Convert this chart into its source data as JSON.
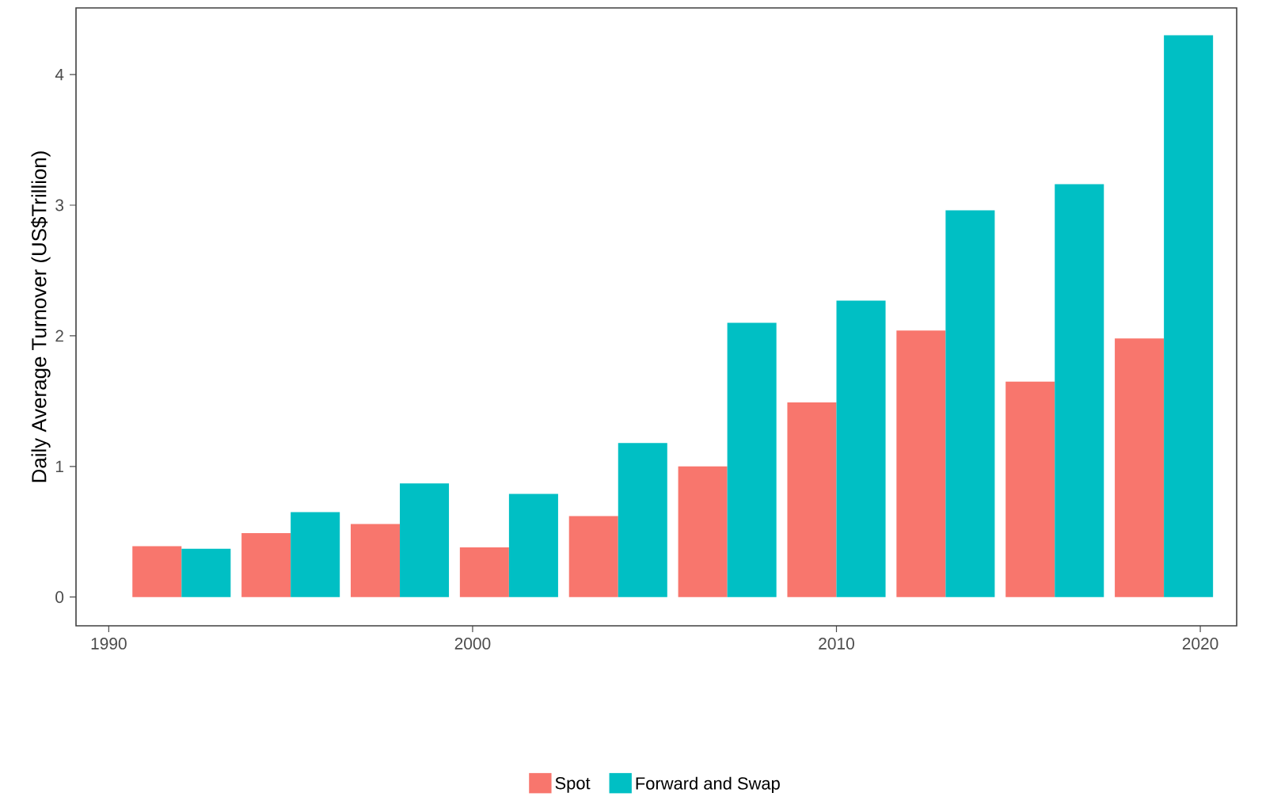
{
  "chart_data": {
    "type": "bar",
    "ylabel": "Daily Average Turnover (US$Trillion)",
    "x": [
      1992,
      1995,
      1998,
      2001,
      2004,
      2007,
      2010,
      2013,
      2016,
      2019
    ],
    "series": [
      {
        "name": "Spot",
        "color": "#f8766d",
        "values": [
          0.39,
          0.49,
          0.56,
          0.38,
          0.62,
          1.0,
          1.49,
          2.04,
          1.65,
          1.98
        ]
      },
      {
        "name": "Forward and Swap",
        "color": "#00bfc4",
        "values": [
          0.37,
          0.65,
          0.87,
          0.79,
          1.18,
          2.1,
          2.27,
          2.96,
          3.16,
          4.3
        ]
      }
    ],
    "xlim": [
      1989.1,
      2021.0
    ],
    "ylim": [
      -0.22,
      4.51
    ],
    "xticks": [
      1990,
      2000,
      2010,
      2020
    ],
    "yticks": [
      0,
      1,
      2,
      3,
      4
    ],
    "grid": false,
    "legend": "bottom"
  }
}
